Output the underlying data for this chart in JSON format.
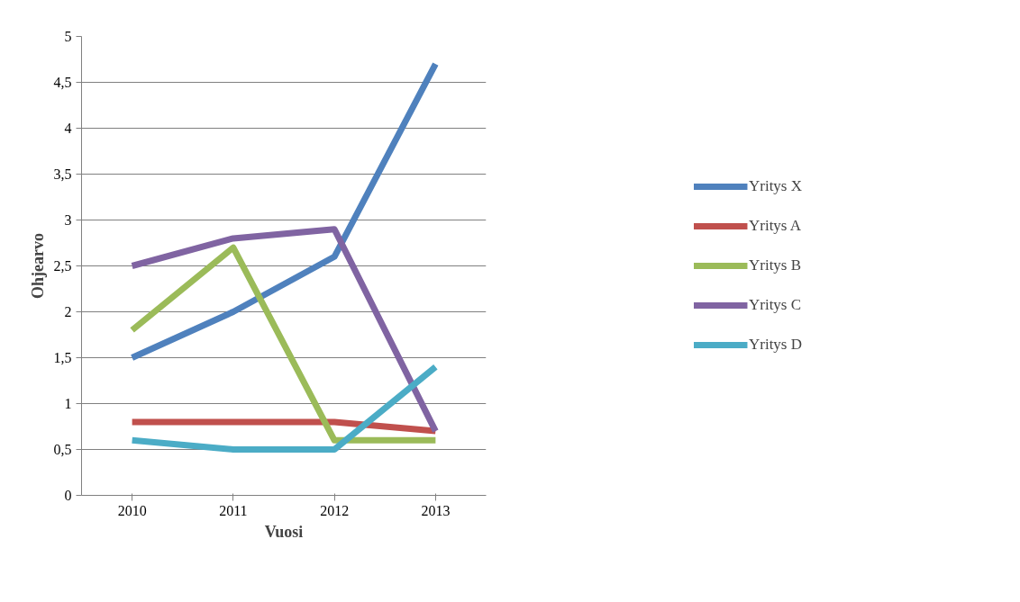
{
  "chart_data": {
    "type": "line",
    "xlabel": "Vuosi",
    "ylabel": "Ohjearvo",
    "categories": [
      "2010",
      "2011",
      "2012",
      "2013"
    ],
    "series": [
      {
        "name": "Yritys X",
        "color": "#4f81bd",
        "values": [
          1.5,
          2.0,
          2.6,
          4.7
        ]
      },
      {
        "name": "Yritys A",
        "color": "#c0504d",
        "values": [
          0.8,
          0.8,
          0.8,
          0.7
        ]
      },
      {
        "name": "Yritys B",
        "color": "#9bbb59",
        "values": [
          1.8,
          2.7,
          0.6,
          0.6
        ]
      },
      {
        "name": "Yritys C",
        "color": "#8064a2",
        "values": [
          2.5,
          2.8,
          2.9,
          0.7
        ]
      },
      {
        "name": "Yritys D",
        "color": "#4bacc6",
        "values": [
          0.6,
          0.5,
          0.5,
          1.4
        ]
      }
    ],
    "ylim": [
      0,
      5
    ],
    "yticks": [
      0,
      {
        "value": 0.5,
        "label": "0,5"
      },
      1,
      {
        "value": 1.5,
        "label": "1,5"
      },
      2,
      {
        "value": 2.5,
        "label": "2,5"
      },
      3,
      {
        "value": 3.5,
        "label": "3,5"
      },
      4,
      {
        "value": 4.5,
        "label": "4,5"
      },
      5
    ],
    "grid": "y",
    "legend": "right",
    "marker": "none",
    "line_style": "solid"
  }
}
